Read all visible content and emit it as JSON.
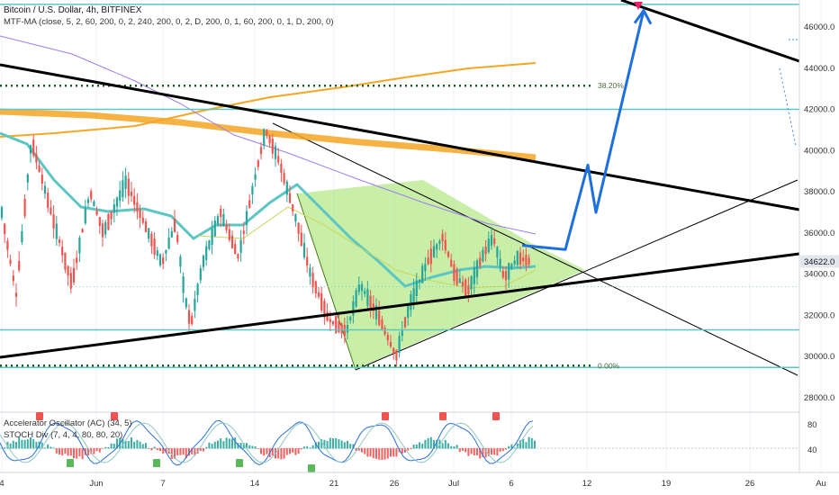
{
  "header": {
    "symbol_line": "Bitcoin / U.S. Dollar, 4h, BITFINEX",
    "indicator_line": "MTF-MA (close, 5, 2, 60, 200, 0, 2, 240, 200, 0, 2, D, 200, 0, 1, 60, 200, 0, 1, D, 200, 0)"
  },
  "oscillators": {
    "ac_label": "Accelerator Oscillator (AC) (34, 5)",
    "stoch_label": "STOCH Div (7, 4, 4, 80, 80, 20)"
  },
  "colors": {
    "up": "#26a69a",
    "down": "#ef5350",
    "teal_line": "#5cc7c2",
    "trend_black": "#000000",
    "fib_dotted": "#1b5e20",
    "wedge_fill": "#9be060",
    "projection_blue": "#1e6fe0",
    "orange_ma": "#f5a623",
    "purple_ma": "#9d7df0",
    "price_tag": "#e3e6ec",
    "marker_magenta": "#e91e63"
  },
  "chart_data": {
    "type": "candlestick",
    "symbol": "Bitcoin / U.S. Dollar",
    "interval": "4h",
    "exchange": "BITFINEX",
    "last_price": 34622.0,
    "last_price_label": "34622.0",
    "y_ticks": [
      46000,
      44000,
      42000,
      40000,
      38000,
      36000,
      34000,
      32000,
      30000,
      28000
    ],
    "y_tick_labels": [
      "46000.0",
      "44000.0",
      "42000.0",
      "40000.0",
      "38000.0",
      "36000.0",
      "34000.0",
      "32000.0",
      "30000.0",
      "28000.0"
    ],
    "ylim": [
      27000,
      47500
    ],
    "x_ticks": [
      "4",
      "Jun",
      "7",
      "14",
      "21",
      "26",
      "Jul",
      "6",
      "12",
      "19",
      "26",
      "Au"
    ],
    "fib_levels": [
      {
        "label": "38.20%",
        "price": 43150
      },
      {
        "label": "0.00%",
        "price": 29560
      }
    ],
    "horizontal_levels": [
      47100,
      42000,
      31300,
      29560
    ],
    "candles_summary": {
      "start": "late May",
      "end": "early July",
      "high": 41300,
      "low": 30000,
      "close": 34622
    },
    "projection_path_prices": [
      35400,
      35200,
      39300,
      37000,
      46800
    ],
    "oscillator_ticks": [
      80,
      40
    ]
  }
}
